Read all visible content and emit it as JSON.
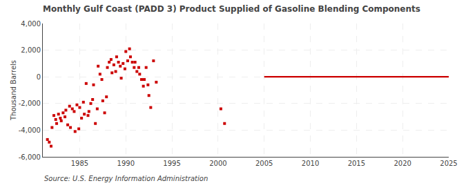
{
  "chart_data": {
    "type": "scatter",
    "title": "Monthly Gulf Coast (PADD 3) Product Supplied of Gasoline Blending Components",
    "y_label": "Thousand Barrels",
    "annotations": [
      "Source: U.S. Energy Information Administration"
    ],
    "xlim": [
      1981,
      2025
    ],
    "ylim": [
      -6000,
      4000
    ],
    "xticks": [
      1985,
      1990,
      1995,
      2000,
      2005,
      2010,
      2015,
      2020,
      2025
    ],
    "yticks": [
      {
        "value": -6000,
        "label": "-6,000"
      },
      {
        "value": -4000,
        "label": "-4,000"
      },
      {
        "value": -2000,
        "label": "-2,000"
      },
      0,
      {
        "value": 2000,
        "label": "2,000"
      },
      {
        "value": 4000,
        "label": "4,000"
      }
    ],
    "grid": true,
    "series": [
      {
        "type": "scatter",
        "color": "#cc0000",
        "marker": "square",
        "x": [
          1981.5,
          1981.7,
          1981.9,
          1982.0,
          1982.2,
          1982.4,
          1982.5,
          1982.7,
          1982.9,
          1983.0,
          1983.2,
          1983.4,
          1983.5,
          1983.7,
          1983.9,
          1984.0,
          1984.2,
          1984.4,
          1984.5,
          1984.7,
          1984.9,
          1985.0,
          1985.2,
          1985.4,
          1985.5,
          1985.7,
          1985.9,
          1986.0,
          1986.2,
          1986.4,
          1986.5,
          1986.7,
          1986.9,
          1987.0,
          1987.2,
          1987.4,
          1987.5,
          1987.7,
          1987.9,
          1988.0,
          1988.2,
          1988.4,
          1988.5,
          1988.7,
          1988.9,
          1989.0,
          1989.2,
          1989.4,
          1989.5,
          1989.7,
          1989.9,
          1990.0,
          1990.2,
          1990.4,
          1990.5,
          1990.7,
          1990.9,
          1991.0,
          1991.2,
          1991.4,
          1991.5,
          1991.7,
          1991.9,
          1992.0,
          1992.2,
          1992.4,
          1992.5,
          1992.7,
          1993.0,
          1993.3,
          2000.3,
          2000.7
        ],
        "values": [
          -4700,
          -4900,
          -5200,
          -3800,
          -2900,
          -3200,
          -3500,
          -2800,
          -3100,
          -3300,
          -2700,
          -3000,
          -2500,
          -3600,
          -2200,
          -3800,
          -2400,
          -2600,
          -4100,
          -2100,
          -3900,
          -2300,
          -3100,
          -1900,
          -2800,
          -500,
          -2900,
          -2600,
          -2000,
          -1700,
          -600,
          -3500,
          -2400,
          800,
          200,
          -200,
          -1800,
          -2700,
          -1500,
          700,
          1100,
          1300,
          300,
          900,
          400,
          1500,
          1100,
          800,
          -100,
          1000,
          600,
          1900,
          1200,
          2100,
          1500,
          1100,
          700,
          1100,
          400,
          700,
          200,
          -200,
          -700,
          -200,
          700,
          -600,
          -1400,
          -2300,
          1200,
          -400,
          -2400,
          -3500
        ]
      },
      {
        "type": "line",
        "color": "#cc0000",
        "line_style": "solid",
        "x": [
          2005.0,
          2025.0
        ],
        "values": [
          0,
          0
        ]
      }
    ]
  }
}
